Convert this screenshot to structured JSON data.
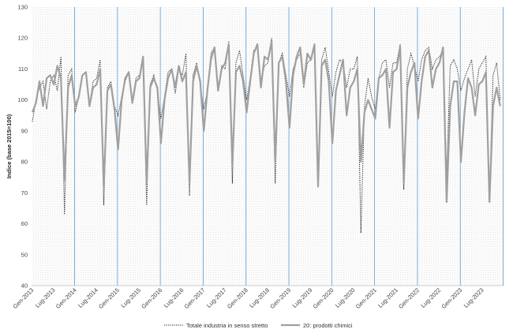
{
  "chart_data": {
    "type": "line",
    "ylabel": "Indice (base 2015=100)",
    "xlabel": "",
    "ylim": [
      40,
      130
    ],
    "yticks": [
      40,
      50,
      60,
      70,
      80,
      90,
      100,
      110,
      120,
      130
    ],
    "xtick_labels": [
      "Gen-2013",
      "Lug-2013",
      "Gen-2014",
      "Lug-2014",
      "Gen-2015",
      "Lug-2015",
      "Gen-2016",
      "Lug-2016",
      "Gen-2017",
      "Lug-2017",
      "Gen-2018",
      "Lug-2018",
      "Gen-2019",
      "Lug-2019",
      "Gen-2020",
      "Lug-2020",
      "Gen-2021",
      "Lug-2021",
      "Gen-2022",
      "Lug-2022",
      "Gen-2023",
      "Lug-2023"
    ],
    "start_year": 2013,
    "grid": "vertical lines at each January, textured background",
    "colors": {
      "total": "#222222",
      "chem": "#a0a0a0",
      "grid": "#5b9bd5"
    },
    "legend_position": "bottom",
    "series": [
      {
        "name": "Totale industria in senso stretto",
        "style": "dotted",
        "values": [
          93,
          100,
          104,
          106,
          97,
          106,
          108,
          103,
          114,
          63,
          108,
          110,
          96,
          101,
          108,
          109,
          98,
          106,
          107,
          113,
          66,
          104,
          106,
          98,
          95,
          101,
          106,
          109,
          100,
          107,
          108,
          114,
          66,
          105,
          108,
          103,
          94,
          101,
          109,
          110,
          102,
          110,
          108,
          115,
          69,
          108,
          112,
          105,
          97,
          103,
          115,
          117,
          104,
          111,
          110,
          119,
          73,
          112,
          116,
          108,
          100,
          107,
          116,
          117,
          106,
          111,
          112,
          120,
          73,
          112,
          115,
          108,
          101,
          110,
          113,
          115,
          104,
          112,
          113,
          118,
          73,
          113,
          117,
          109,
          101,
          109,
          113,
          112,
          104,
          110,
          110,
          114,
          57,
          98,
          107,
          101,
          97,
          107,
          112,
          113,
          104,
          112,
          112,
          118,
          71,
          110,
          115,
          111,
          106,
          113,
          116,
          117,
          110,
          113,
          114,
          116,
          75,
          111,
          113,
          110,
          103,
          107,
          110,
          113,
          101,
          110,
          112,
          114,
          69,
          108,
          112,
          100
        ]
      },
      {
        "name": "20: prodotti chimici",
        "style": "solid",
        "values": [
          96,
          99,
          106,
          98,
          107,
          108,
          105,
          111,
          107,
          74,
          104,
          108,
          98,
          101,
          108,
          109,
          98,
          104,
          105,
          110,
          72,
          103,
          105,
          97,
          84,
          100,
          107,
          109,
          99,
          106,
          107,
          114,
          73,
          104,
          107,
          104,
          86,
          100,
          107,
          110,
          104,
          111,
          106,
          109,
          73,
          106,
          111,
          106,
          90,
          103,
          113,
          117,
          103,
          110,
          112,
          118,
          79,
          109,
          111,
          106,
          96,
          106,
          115,
          118,
          104,
          114,
          113,
          119,
          80,
          112,
          114,
          106,
          91,
          108,
          114,
          117,
          105,
          115,
          113,
          118,
          72,
          111,
          113,
          106,
          86,
          103,
          108,
          113,
          95,
          104,
          106,
          110,
          80,
          96,
          100,
          97,
          94,
          107,
          108,
          110,
          91,
          109,
          110,
          117,
          73,
          104,
          109,
          112,
          94,
          106,
          114,
          116,
          104,
          110,
          112,
          117,
          67,
          98,
          106,
          106,
          80,
          96,
          107,
          104,
          95,
          105,
          106,
          109,
          67,
          98,
          104,
          98
        ]
      }
    ]
  }
}
